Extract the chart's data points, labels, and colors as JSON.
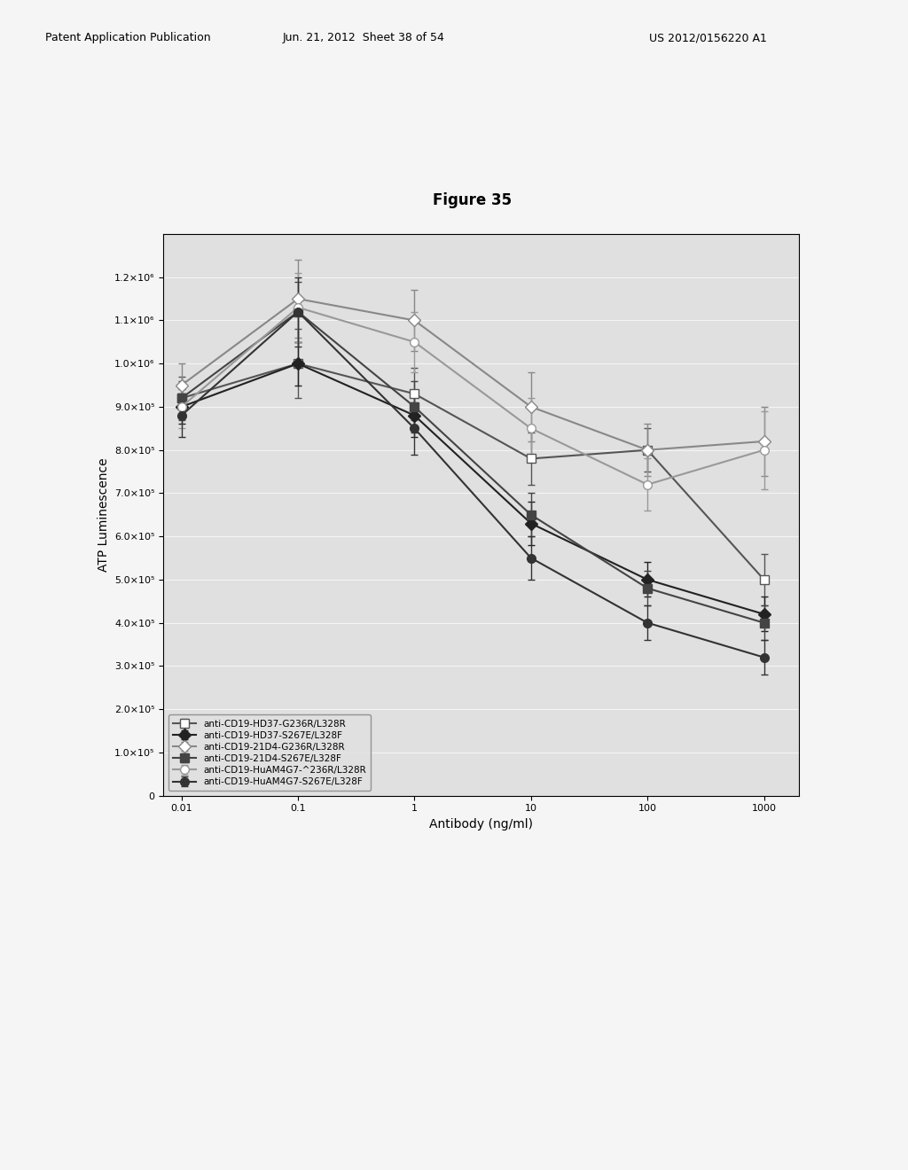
{
  "title": "Figure 35",
  "xlabel": "Antibody (ng/ml)",
  "ylabel": "ATP Luminescence",
  "xvals": [
    0.01,
    0.1,
    1,
    10,
    100,
    1000
  ],
  "series": [
    {
      "label": "anti-CD19-HD37-G236R/L328R",
      "marker": "s",
      "color": "#555555",
      "linestyle": "-",
      "fillstyle": "none",
      "y": [
        920000.0,
        1000000.0,
        930000.0,
        780000.0,
        800000.0,
        500000.0
      ],
      "yerr": [
        50000.0,
        80000.0,
        60000.0,
        60000.0,
        50000.0,
        60000.0
      ]
    },
    {
      "label": "anti-CD19-HD37-S267E/L328F",
      "marker": "D",
      "color": "#222222",
      "linestyle": "-",
      "fillstyle": "full",
      "y": [
        900000.0,
        1000000.0,
        880000.0,
        630000.0,
        500000.0,
        420000.0
      ],
      "yerr": [
        40000.0,
        50000.0,
        50000.0,
        50000.0,
        40000.0,
        40000.0
      ]
    },
    {
      "label": "anti-CD19-21D4-G236R/L328R",
      "marker": "D",
      "color": "#888888",
      "linestyle": "-",
      "fillstyle": "none",
      "y": [
        950000.0,
        1150000.0,
        1100000.0,
        900000.0,
        800000.0,
        820000.0
      ],
      "yerr": [
        50000.0,
        90000.0,
        70000.0,
        80000.0,
        60000.0,
        80000.0
      ]
    },
    {
      "label": "anti-CD19-21D4-S267E/L328F",
      "marker": "s",
      "color": "#444444",
      "linestyle": "-",
      "fillstyle": "full",
      "y": [
        920000.0,
        1120000.0,
        900000.0,
        650000.0,
        480000.0,
        400000.0
      ],
      "yerr": [
        40000.0,
        70000.0,
        60000.0,
        50000.0,
        40000.0,
        40000.0
      ]
    },
    {
      "label": "anti-CD19-HuAM4G7-^236R/L328R",
      "marker": "o",
      "color": "#999999",
      "linestyle": "-",
      "fillstyle": "none",
      "y": [
        900000.0,
        1130000.0,
        1050000.0,
        850000.0,
        720000.0,
        800000.0
      ],
      "yerr": [
        50000.0,
        80000.0,
        70000.0,
        70000.0,
        60000.0,
        90000.0
      ]
    },
    {
      "label": "anti-CD19-HuAM4G7-S267E/L328F",
      "marker": "o",
      "color": "#333333",
      "linestyle": "-",
      "fillstyle": "full",
      "y": [
        880000.0,
        1120000.0,
        850000.0,
        550000.0,
        400000.0,
        320000.0
      ],
      "yerr": [
        50000.0,
        80000.0,
        60000.0,
        50000.0,
        40000.0,
        40000.0
      ]
    }
  ],
  "ylim": [
    0,
    1300000.0
  ],
  "yticks": [
    0,
    100000.0,
    200000.0,
    300000.0,
    400000.0,
    500000.0,
    600000.0,
    700000.0,
    800000.0,
    900000.0,
    1000000.0,
    1100000.0,
    1200000.0
  ],
  "ytick_labels": [
    "0",
    "1.0×10⁵",
    "2.0×10⁵",
    "3.0×10⁵",
    "4.0×10⁵",
    "5.0×10⁵",
    "6.0×10⁵",
    "7.0×10⁵",
    "8.0×10⁵",
    "9.0×10⁵",
    "1.0×10⁶",
    "1.1×10⁶",
    "1.2×10⁶"
  ],
  "background_color": "#e0e0e0",
  "header_pub": "Patent Application Publication",
  "header_date": "Jun. 21, 2012  Sheet 38 of 54",
  "header_num": "US 2012/0156220 A1"
}
